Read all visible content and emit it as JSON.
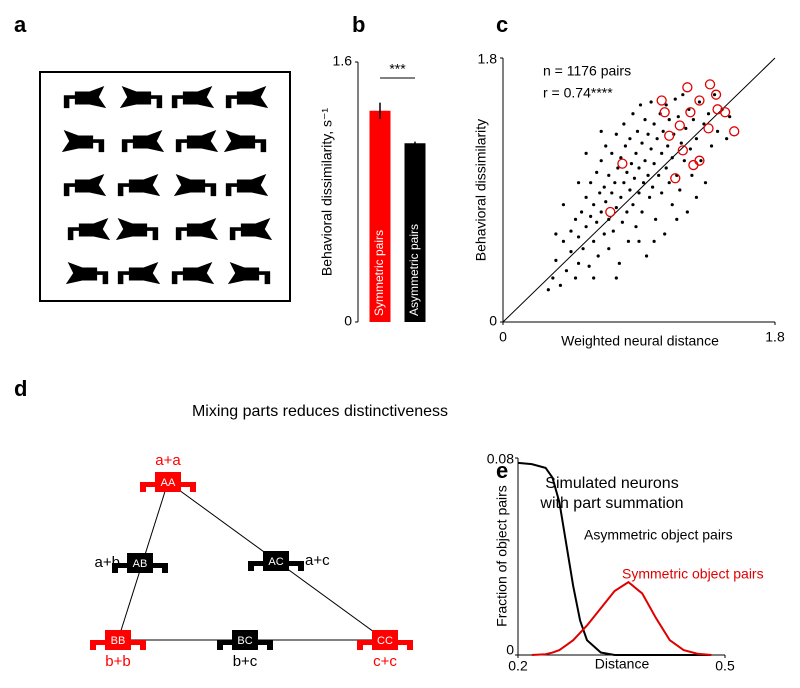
{
  "panel_a": {
    "label": "a"
  },
  "chart_data": [
    {
      "type": "bar",
      "label": "b",
      "ylabel": "Behavioral dissimilarity, s⁻¹",
      "categories": [
        "Symmetric pairs",
        "Asymmetric pairs"
      ],
      "values": [
        1.3,
        1.1
      ],
      "errors": [
        0.05,
        0.01
      ],
      "colors": [
        "#ff0000",
        "#000000"
      ],
      "ylim": [
        0,
        1.6
      ],
      "yticks": [
        0,
        1.6
      ],
      "annotation": "***"
    },
    {
      "type": "scatter",
      "label": "c",
      "xlabel": "Weighted neural distance",
      "ylabel": "Behavioral dissimilarity",
      "annotations": [
        "n = 1176 pairs",
        "r = 0.74****"
      ],
      "xlim": [
        0,
        1.8
      ],
      "ylim": [
        0,
        1.8
      ],
      "xticks": [
        0,
        1.8
      ],
      "yticks": [
        0,
        1.8
      ],
      "diagonal": true,
      "series": [
        {
          "color": "#000000",
          "marker": "dot",
          "x": [
            0.3,
            0.33,
            0.35,
            0.38,
            0.4,
            0.42,
            0.45,
            0.45,
            0.48,
            0.48,
            0.5,
            0.5,
            0.52,
            0.53,
            0.55,
            0.55,
            0.57,
            0.58,
            0.58,
            0.6,
            0.6,
            0.62,
            0.62,
            0.63,
            0.64,
            0.65,
            0.65,
            0.67,
            0.67,
            0.68,
            0.68,
            0.7,
            0.7,
            0.7,
            0.72,
            0.72,
            0.73,
            0.74,
            0.75,
            0.75,
            0.76,
            0.77,
            0.78,
            0.78,
            0.79,
            0.8,
            0.8,
            0.81,
            0.82,
            0.82,
            0.83,
            0.84,
            0.84,
            0.85,
            0.86,
            0.86,
            0.87,
            0.88,
            0.88,
            0.89,
            0.9,
            0.9,
            0.91,
            0.92,
            0.92,
            0.93,
            0.94,
            0.94,
            0.95,
            0.96,
            0.96,
            0.97,
            0.98,
            0.98,
            0.99,
            1.0,
            1.0,
            1.01,
            1.02,
            1.03,
            1.04,
            1.05,
            1.05,
            1.06,
            1.07,
            1.08,
            1.08,
            1.09,
            1.1,
            1.1,
            1.12,
            1.12,
            1.13,
            1.14,
            1.15,
            1.16,
            1.17,
            1.18,
            1.19,
            1.2,
            1.21,
            1.22,
            1.23,
            1.24,
            1.25,
            1.26,
            1.28,
            1.28,
            1.3,
            1.31,
            1.33,
            1.34,
            1.36,
            1.38,
            1.4,
            1.42,
            1.45,
            1.48,
            1.5,
            0.4,
            0.55,
            0.6,
            0.75,
            0.9,
            1.0,
            1.15,
            0.35,
            0.5,
            0.65
          ],
          "values": [
            0.22,
            0.3,
            0.42,
            0.25,
            0.55,
            0.35,
            0.48,
            0.62,
            0.3,
            0.7,
            0.4,
            0.58,
            0.75,
            0.5,
            0.65,
            0.85,
            0.38,
            0.72,
            0.95,
            0.55,
            0.8,
            0.68,
            1.02,
            0.45,
            0.88,
            0.75,
            1.1,
            0.6,
            0.92,
            0.82,
            1.2,
            0.5,
            0.7,
            1.0,
            0.88,
            1.15,
            0.62,
            0.95,
            0.78,
            1.28,
            1.05,
            0.4,
            0.85,
            1.12,
            0.68,
            0.95,
            1.35,
            1.2,
            0.75,
            1.02,
            0.55,
            0.9,
            1.25,
            1.08,
            0.8,
            1.42,
            0.98,
            1.15,
            0.65,
            1.3,
            0.88,
            1.05,
            1.48,
            0.75,
            1.22,
            0.95,
            1.1,
            1.38,
            0.45,
            1.0,
            1.28,
            0.85,
            1.18,
            1.5,
            0.92,
            1.08,
            1.35,
            0.7,
            1.25,
            1.0,
            1.42,
            0.88,
            1.15,
            1.3,
            0.6,
            1.05,
            1.48,
            1.2,
            0.95,
            1.38,
            1.12,
            0.8,
            1.28,
            1.52,
            1.0,
            1.4,
            0.9,
            1.22,
            1.55,
            1.1,
            1.32,
            0.75,
            1.45,
            1.18,
            1.0,
            1.38,
            1.25,
            0.85,
            1.5,
            1.1,
            1.35,
            0.95,
            1.42,
            1.2,
            1.55,
            1.3,
            1.45,
            1.25,
            1.4,
            0.8,
            1.15,
            0.3,
            0.3,
            0.55,
            0.55,
            0.7,
            0.6,
            0.95,
            1.3
          ]
        },
        {
          "color": "#e00000",
          "marker": "open-circle",
          "x": [
            1.05,
            1.22,
            1.37,
            1.41,
            1.42,
            1.47,
            1.53,
            1.3,
            1.24,
            1.07,
            1.19,
            1.3,
            1.26,
            1.14,
            1.17,
            0.79,
            0.71,
            1.1,
            1.36
          ],
          "values": [
            1.51,
            1.6,
            1.62,
            1.55,
            1.45,
            1.43,
            1.3,
            1.51,
            1.43,
            1.43,
            1.17,
            1.1,
            1.07,
            0.98,
            1.34,
            1.08,
            0.75,
            1.27,
            1.32
          ]
        }
      ]
    },
    {
      "type": "line",
      "label": "e",
      "title": [
        "Simulated neurons",
        "with part summation"
      ],
      "xlabel": "Distance",
      "ylabel": "Fraction of object pairs",
      "xlim": [
        0.2,
        0.5
      ],
      "ylim": [
        0,
        0.08
      ],
      "xticks": [
        0.2,
        0.5
      ],
      "yticks": [
        0,
        0.08
      ],
      "x": [
        0.2,
        0.22,
        0.24,
        0.25,
        0.26,
        0.27,
        0.28,
        0.29,
        0.3,
        0.32,
        0.34,
        0.36,
        0.38,
        0.4,
        0.42,
        0.44,
        0.46,
        0.48
      ],
      "series": [
        {
          "name": "Asymmetric object pairs",
          "color": "#000000",
          "values": [
            0.078,
            0.0775,
            0.076,
            0.072,
            0.062,
            0.045,
            0.028,
            0.014,
            0.006,
            0.001,
            0,
            0,
            0,
            0,
            0,
            0,
            0,
            0
          ]
        },
        {
          "name": "Symmetric object pairs",
          "color": "#e00000",
          "values": [
            null,
            0,
            0.0003,
            0.001,
            0.002,
            0.004,
            0.006,
            0.009,
            0.012,
            0.019,
            0.026,
            0.0296,
            0.025,
            0.015,
            0.006,
            0.002,
            0.0005,
            0
          ]
        }
      ]
    }
  ],
  "diagram": {
    "label": "d",
    "title": "Mixing parts reduces distinctiveness",
    "nodes": [
      {
        "code": "AA",
        "label": "a+a",
        "color": "#ff0000"
      },
      {
        "code": "AB",
        "label": "a+b",
        "color": "#000000"
      },
      {
        "code": "AC",
        "label": "a+c",
        "color": "#000000"
      },
      {
        "code": "BB",
        "label": "b+b",
        "color": "#ff0000"
      },
      {
        "code": "BC",
        "label": "b+c",
        "color": "#000000"
      },
      {
        "code": "CC",
        "label": "c+c",
        "color": "#ff0000"
      }
    ]
  }
}
